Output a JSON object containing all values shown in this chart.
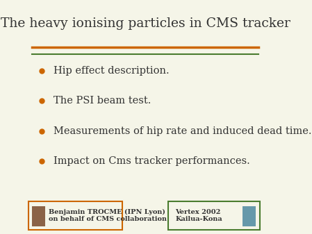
{
  "title": "The heavy ionising particles in CMS tracker",
  "title_fontsize": 13.5,
  "title_color": "#333333",
  "title_font": "serif",
  "bullet_items": [
    "Hip effect description.",
    "The PSI beam test.",
    "Measurements of hip rate and induced dead time.",
    "Impact on Cms tracker performances."
  ],
  "bullet_color": "#cc6600",
  "bullet_text_color": "#333333",
  "bullet_fontsize": 10.5,
  "bullet_font": "serif",
  "line1_color": "#cc6600",
  "line2_color": "#4a7c2f",
  "bg_color": "#f5f5e8",
  "footer_left_text": "Benjamin TROCME (IPN Lyon)\non behalf of CMS collaboration",
  "footer_left_border": "#cc6600",
  "footer_right_text": "Vertex 2002\nKailua-Kona",
  "footer_right_border": "#4a7c2f",
  "footer_fontsize": 7,
  "footer_img_left_color": "#8B6347",
  "footer_img_right_color": "#6699aa"
}
